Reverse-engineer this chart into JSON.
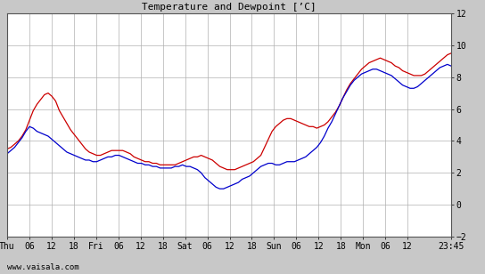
{
  "title": "Temperature and Dewpoint [’C]",
  "ylim": [
    -2,
    12
  ],
  "yticks": [
    -2,
    0,
    2,
    4,
    6,
    8,
    10,
    12
  ],
  "xlabel_bottom": "www.vaisala.com",
  "x_tick_labels": [
    "Thu",
    "06",
    "12",
    "18",
    "Fri",
    "06",
    "12",
    "18",
    "Sat",
    "06",
    "12",
    "18",
    "Sun",
    "06",
    "12",
    "18",
    "Mon",
    "06",
    "12",
    "23:45"
  ],
  "x_tick_positions": [
    0,
    6,
    12,
    18,
    24,
    30,
    36,
    42,
    48,
    54,
    60,
    66,
    72,
    78,
    84,
    90,
    96,
    102,
    108,
    119.75
  ],
  "background_color": "#c8c8c8",
  "plot_bg_color": "#ffffff",
  "grid_color": "#b0b0b0",
  "temp_color": "#cc0000",
  "dewp_color": "#0000cc",
  "line_width": 0.9,
  "temp_data": [
    3.5,
    3.6,
    3.8,
    4.0,
    4.3,
    4.7,
    5.3,
    5.9,
    6.3,
    6.6,
    6.9,
    7.0,
    6.8,
    6.5,
    5.9,
    5.5,
    5.1,
    4.7,
    4.4,
    4.1,
    3.8,
    3.5,
    3.3,
    3.2,
    3.1,
    3.1,
    3.2,
    3.3,
    3.4,
    3.4,
    3.4,
    3.4,
    3.3,
    3.2,
    3.0,
    2.9,
    2.8,
    2.7,
    2.7,
    2.6,
    2.6,
    2.5,
    2.5,
    2.5,
    2.5,
    2.5,
    2.6,
    2.7,
    2.8,
    2.9,
    3.0,
    3.0,
    3.1,
    3.0,
    2.9,
    2.8,
    2.6,
    2.4,
    2.3,
    2.2,
    2.2,
    2.2,
    2.3,
    2.4,
    2.5,
    2.6,
    2.7,
    2.9,
    3.1,
    3.6,
    4.1,
    4.6,
    4.9,
    5.1,
    5.3,
    5.4,
    5.4,
    5.3,
    5.2,
    5.1,
    5.0,
    4.9,
    4.9,
    4.8,
    4.9,
    5.0,
    5.2,
    5.5,
    5.8,
    6.2,
    6.7,
    7.2,
    7.6,
    7.9,
    8.2,
    8.5,
    8.7,
    8.9,
    9.0,
    9.1,
    9.2,
    9.1,
    9.0,
    8.9,
    8.7,
    8.6,
    8.4,
    8.3,
    8.2,
    8.1,
    8.1,
    8.1,
    8.2,
    8.4,
    8.6,
    8.8,
    9.0,
    9.2,
    9.4,
    9.5
  ],
  "dewp_data": [
    3.2,
    3.4,
    3.6,
    3.9,
    4.2,
    4.6,
    4.9,
    4.8,
    4.6,
    4.5,
    4.4,
    4.3,
    4.1,
    3.9,
    3.7,
    3.5,
    3.3,
    3.2,
    3.1,
    3.0,
    2.9,
    2.8,
    2.8,
    2.7,
    2.7,
    2.8,
    2.9,
    3.0,
    3.0,
    3.1,
    3.1,
    3.0,
    2.9,
    2.8,
    2.7,
    2.6,
    2.6,
    2.5,
    2.5,
    2.4,
    2.4,
    2.3,
    2.3,
    2.3,
    2.3,
    2.4,
    2.4,
    2.5,
    2.4,
    2.4,
    2.3,
    2.2,
    2.0,
    1.7,
    1.5,
    1.3,
    1.1,
    1.0,
    1.0,
    1.1,
    1.2,
    1.3,
    1.4,
    1.6,
    1.7,
    1.8,
    2.0,
    2.2,
    2.4,
    2.5,
    2.6,
    2.6,
    2.5,
    2.5,
    2.6,
    2.7,
    2.7,
    2.7,
    2.8,
    2.9,
    3.0,
    3.2,
    3.4,
    3.6,
    3.9,
    4.3,
    4.8,
    5.2,
    5.7,
    6.2,
    6.7,
    7.1,
    7.5,
    7.8,
    8.0,
    8.2,
    8.3,
    8.4,
    8.5,
    8.5,
    8.4,
    8.3,
    8.2,
    8.1,
    7.9,
    7.7,
    7.5,
    7.4,
    7.3,
    7.3,
    7.4,
    7.6,
    7.8,
    8.0,
    8.2,
    8.4,
    8.6,
    8.7,
    8.8,
    8.7
  ]
}
